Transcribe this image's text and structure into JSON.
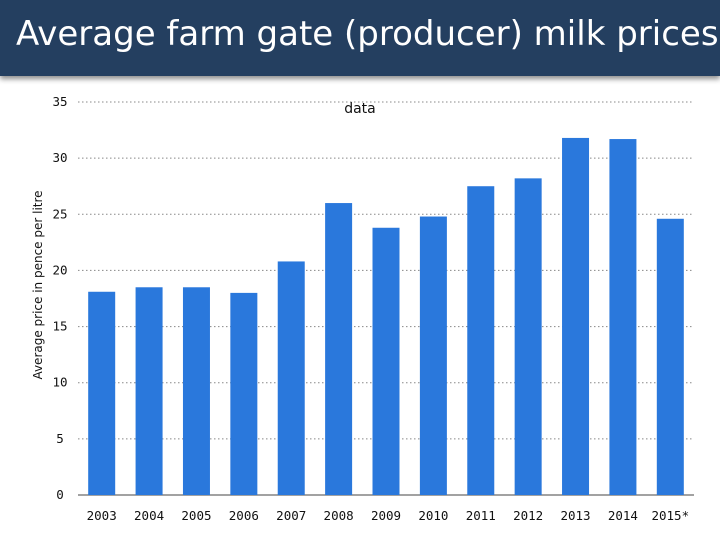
{
  "header": {
    "title": "Average farm gate (producer) milk prices"
  },
  "chart_data": {
    "type": "bar",
    "title": "Average farm gate (producer) milk prices",
    "subtitle": "data",
    "xlabel": "",
    "ylabel": "Average price in pence per litre",
    "ylim": [
      0,
      35
    ],
    "yticks": [
      0,
      5,
      10,
      15,
      20,
      25,
      30,
      35
    ],
    "grid": true,
    "categories": [
      "2003",
      "2004",
      "2005",
      "2006",
      "2007",
      "2008",
      "2009",
      "2010",
      "2011",
      "2012",
      "2013",
      "2014",
      "2015*"
    ],
    "values": [
      18.1,
      18.5,
      18.5,
      18.0,
      20.8,
      26.0,
      23.8,
      24.8,
      27.5,
      28.2,
      31.8,
      31.7,
      24.6
    ],
    "colors": {
      "bar": "#2a78dc",
      "grid": "#888888",
      "header": "#243f60"
    }
  }
}
